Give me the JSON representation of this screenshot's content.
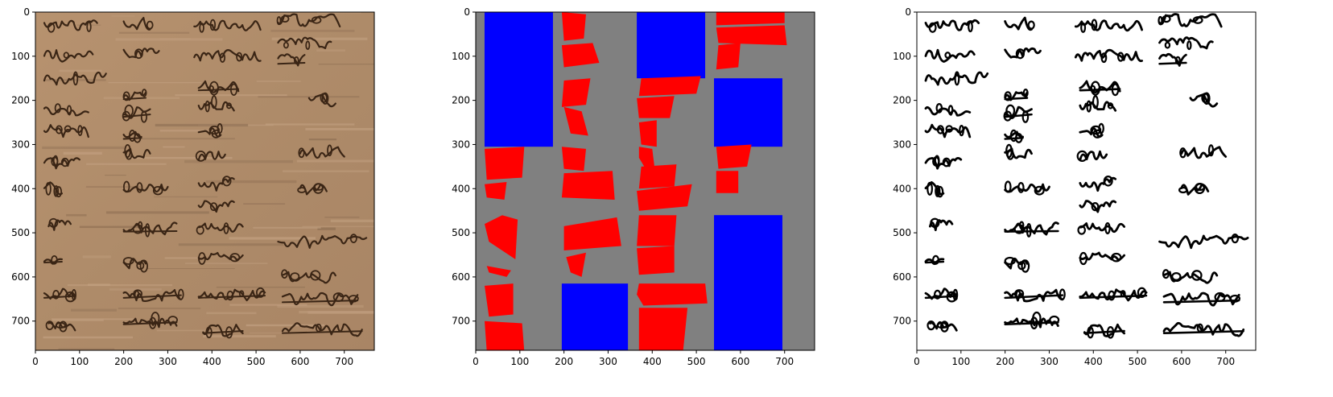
{
  "panels": [
    {
      "name": "manuscript-photo",
      "kind": "photo",
      "x_ticks": [
        "0",
        "100",
        "200",
        "300",
        "400",
        "500",
        "600",
        "700"
      ],
      "y_ticks": [
        "0",
        "100",
        "200",
        "300",
        "400",
        "500",
        "600",
        "700"
      ],
      "colors": {
        "paper": "#b38f6e",
        "paper_dark": "#9d7a5a",
        "ink": "#3a2515"
      }
    },
    {
      "name": "segmentation-mask",
      "kind": "mask",
      "x_ticks": [
        "0",
        "100",
        "200",
        "300",
        "400",
        "500",
        "600",
        "700"
      ],
      "y_ticks": [
        "0",
        "100",
        "200",
        "300",
        "400",
        "500",
        "600",
        "700"
      ],
      "colors": {
        "background": "#808080",
        "text_region": "#ff0000",
        "blank_region": "#0000ff"
      }
    },
    {
      "name": "binarized-text",
      "kind": "binary",
      "x_ticks": [
        "0",
        "100",
        "200",
        "300",
        "400",
        "500",
        "600",
        "700"
      ],
      "y_ticks": [
        "0",
        "100",
        "200",
        "300",
        "400",
        "500",
        "600",
        "700"
      ],
      "colors": {
        "background": "#ffffff",
        "ink": "#000000"
      }
    }
  ],
  "manuscript_text": {
    "col1": [
      "ep",
      "mi dec",
      "facatt",
      "",
      "haytt",
      "yab",
      "ax",
      "dx",
      "Z",
      "x",
      "ST",
      "KR"
    ],
    "col2": [
      "dy",
      "XY",
      "",
      "X",
      "Ux",
      "",
      "Tx",
      "A. X,",
      "+X++",
      "V",
      "mrer",
      "ramu"
    ],
    "col3": [
      "Tim",
      "yrabant",
      "y+dy",
      "Ux",
      "",
      "dx",
      "yixiy",
      "xxy",
      "xx",
      "",
      "dx=",
      "dx"
    ],
    "col4": [
      "dx",
      "Ky: dx",
      "X",
      "ke",
      "",
      "ZZ",
      "T:",
      "",
      "m tro:",
      "Y",
      "",
      "ti pat"
    ]
  }
}
